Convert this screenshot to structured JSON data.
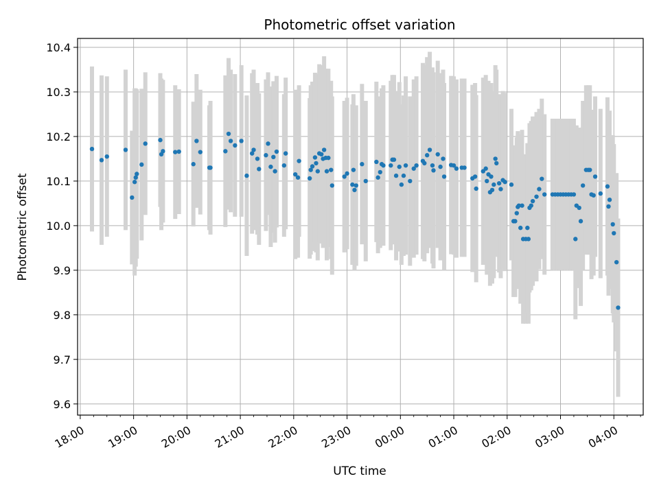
{
  "chart_data": {
    "type": "scatter",
    "title": "Photometric offset variation",
    "xlabel": "UTC time",
    "ylabel": "Photometric offset",
    "x_tick_labels": [
      "18:00",
      "19:00",
      "20:00",
      "21:00",
      "22:00",
      "23:00",
      "00:00",
      "01:00",
      "02:00",
      "03:00",
      "04:00"
    ],
    "x_range_hours": [
      17.95,
      28.55
    ],
    "y_ticks": [
      "9.6",
      "9.7",
      "9.8",
      "9.9",
      "10.0",
      "10.1",
      "10.2",
      "10.3",
      "10.4"
    ],
    "ylim": [
      9.575,
      10.42
    ],
    "grid": true,
    "point_color": "#1f77b4",
    "errorbar_color": "#d3d3d3",
    "points": [
      [
        18.22,
        10.172,
        0.185
      ],
      [
        18.4,
        10.147,
        0.19
      ],
      [
        18.5,
        10.155,
        0.18
      ],
      [
        18.85,
        10.17,
        0.18
      ],
      [
        18.97,
        10.063,
        0.15
      ],
      [
        19.02,
        10.098,
        0.21
      ],
      [
        19.04,
        10.108,
        0.2
      ],
      [
        19.06,
        10.116,
        0.19
      ],
      [
        19.15,
        10.137,
        0.17
      ],
      [
        19.22,
        10.184,
        0.16
      ],
      [
        19.5,
        10.192,
        0.15
      ],
      [
        19.55,
        10.167,
        0.16
      ],
      [
        19.52,
        10.16,
        0.17
      ],
      [
        19.78,
        10.165,
        0.15
      ],
      [
        19.85,
        10.166,
        0.14
      ],
      [
        20.12,
        10.138,
        0.14
      ],
      [
        20.18,
        10.19,
        0.15
      ],
      [
        20.25,
        10.165,
        0.14
      ],
      [
        20.42,
        10.13,
        0.14
      ],
      [
        20.44,
        10.13,
        0.15
      ],
      [
        20.72,
        10.167,
        0.17
      ],
      [
        20.78,
        10.206,
        0.17
      ],
      [
        20.82,
        10.19,
        0.16
      ],
      [
        20.9,
        10.18,
        0.16
      ],
      [
        21.02,
        10.19,
        0.17
      ],
      [
        21.12,
        10.112,
        0.18
      ],
      [
        21.22,
        10.162,
        0.18
      ],
      [
        21.25,
        10.17,
        0.18
      ],
      [
        21.32,
        10.15,
        0.17
      ],
      [
        21.35,
        10.127,
        0.17
      ],
      [
        21.48,
        10.158,
        0.17
      ],
      [
        21.52,
        10.184,
        0.16
      ],
      [
        21.57,
        10.132,
        0.18
      ],
      [
        21.62,
        10.154,
        0.17
      ],
      [
        21.65,
        10.122,
        0.16
      ],
      [
        21.68,
        10.166,
        0.17
      ],
      [
        21.82,
        10.135,
        0.16
      ],
      [
        21.85,
        10.162,
        0.17
      ],
      [
        22.03,
        10.115,
        0.19
      ],
      [
        22.08,
        10.108,
        0.18
      ],
      [
        22.1,
        10.145,
        0.17
      ],
      [
        22.3,
        10.106,
        0.18
      ],
      [
        22.32,
        10.125,
        0.19
      ],
      [
        22.35,
        10.133,
        0.19
      ],
      [
        22.4,
        10.153,
        0.19
      ],
      [
        22.42,
        10.14,
        0.2
      ],
      [
        22.45,
        10.122,
        0.2
      ],
      [
        22.48,
        10.162,
        0.2
      ],
      [
        22.52,
        10.16,
        0.2
      ],
      [
        22.55,
        10.15,
        0.2
      ],
      [
        22.57,
        10.17,
        0.21
      ],
      [
        22.6,
        10.152,
        0.2
      ],
      [
        22.62,
        10.122,
        0.2
      ],
      [
        22.65,
        10.152,
        0.2
      ],
      [
        22.7,
        10.125,
        0.2
      ],
      [
        22.72,
        10.09,
        0.2
      ],
      [
        22.95,
        10.11,
        0.17
      ],
      [
        23.0,
        10.117,
        0.17
      ],
      [
        23.1,
        10.092,
        0.18
      ],
      [
        23.12,
        10.125,
        0.17
      ],
      [
        23.14,
        10.08,
        0.18
      ],
      [
        23.17,
        10.09,
        0.18
      ],
      [
        23.28,
        10.138,
        0.18
      ],
      [
        23.35,
        10.1,
        0.18
      ],
      [
        23.55,
        10.143,
        0.18
      ],
      [
        23.58,
        10.108,
        0.17
      ],
      [
        23.62,
        10.12,
        0.17
      ],
      [
        23.65,
        10.138,
        0.17
      ],
      [
        23.68,
        10.135,
        0.18
      ],
      [
        23.82,
        10.135,
        0.19
      ],
      [
        23.85,
        10.148,
        0.19
      ],
      [
        23.88,
        10.148,
        0.19
      ],
      [
        23.92,
        10.112,
        0.19
      ],
      [
        23.98,
        10.132,
        0.19
      ],
      [
        24.02,
        10.092,
        0.18
      ],
      [
        24.06,
        10.112,
        0.18
      ],
      [
        24.1,
        10.135,
        0.2
      ],
      [
        24.18,
        10.1,
        0.19
      ],
      [
        24.25,
        10.128,
        0.2
      ],
      [
        24.3,
        10.135,
        0.2
      ],
      [
        24.42,
        10.145,
        0.22
      ],
      [
        24.45,
        10.14,
        0.22
      ],
      [
        24.5,
        10.158,
        0.22
      ],
      [
        24.55,
        10.17,
        0.22
      ],
      [
        24.6,
        10.135,
        0.22
      ],
      [
        24.62,
        10.124,
        0.22
      ],
      [
        24.7,
        10.16,
        0.21
      ],
      [
        24.75,
        10.132,
        0.21
      ],
      [
        24.82,
        10.11,
        0.21
      ],
      [
        24.8,
        10.15,
        0.2
      ],
      [
        24.95,
        10.136,
        0.2
      ],
      [
        25.0,
        10.135,
        0.2
      ],
      [
        25.05,
        10.128,
        0.2
      ],
      [
        25.15,
        10.13,
        0.2
      ],
      [
        25.2,
        10.13,
        0.2
      ],
      [
        25.35,
        10.106,
        0.21
      ],
      [
        25.4,
        10.11,
        0.21
      ],
      [
        25.42,
        10.083,
        0.21
      ],
      [
        25.55,
        10.122,
        0.21
      ],
      [
        25.6,
        10.128,
        0.21
      ],
      [
        25.62,
        10.1,
        0.21
      ],
      [
        25.65,
        10.115,
        0.21
      ],
      [
        25.68,
        10.075,
        0.21
      ],
      [
        25.7,
        10.11,
        0.21
      ],
      [
        25.72,
        10.08,
        0.21
      ],
      [
        25.75,
        10.092,
        0.21
      ],
      [
        25.78,
        10.15,
        0.21
      ],
      [
        25.8,
        10.14,
        0.21
      ],
      [
        25.85,
        10.095,
        0.2
      ],
      [
        25.88,
        10.082,
        0.2
      ],
      [
        25.92,
        10.102,
        0.2
      ],
      [
        25.96,
        10.098,
        0.2
      ],
      [
        26.08,
        10.092,
        0.17
      ],
      [
        26.12,
        10.01,
        0.17
      ],
      [
        26.15,
        10.01,
        0.17
      ],
      [
        26.18,
        10.028,
        0.17
      ],
      [
        26.2,
        10.042,
        0.17
      ],
      [
        26.22,
        10.045,
        0.16
      ],
      [
        26.25,
        9.995,
        0.17
      ],
      [
        26.28,
        10.045,
        0.17
      ],
      [
        26.3,
        9.97,
        0.19
      ],
      [
        26.35,
        9.97,
        0.19
      ],
      [
        26.4,
        9.97,
        0.19
      ],
      [
        26.38,
        9.995,
        0.19
      ],
      [
        26.42,
        10.04,
        0.19
      ],
      [
        26.45,
        10.045,
        0.19
      ],
      [
        26.48,
        10.055,
        0.19
      ],
      [
        26.55,
        10.065,
        0.19
      ],
      [
        26.6,
        10.082,
        0.18
      ],
      [
        26.65,
        10.105,
        0.18
      ],
      [
        26.7,
        10.07,
        0.18
      ],
      [
        26.85,
        10.07,
        0.17
      ],
      [
        26.9,
        10.07,
        0.17
      ],
      [
        26.95,
        10.07,
        0.17
      ],
      [
        27.0,
        10.07,
        0.17
      ],
      [
        27.05,
        10.07,
        0.17
      ],
      [
        27.1,
        10.07,
        0.17
      ],
      [
        27.15,
        10.07,
        0.17
      ],
      [
        27.2,
        10.07,
        0.17
      ],
      [
        27.25,
        10.07,
        0.17
      ],
      [
        27.28,
        9.97,
        0.18
      ],
      [
        27.3,
        10.045,
        0.18
      ],
      [
        27.35,
        10.04,
        0.18
      ],
      [
        27.38,
        10.01,
        0.19
      ],
      [
        27.42,
        10.09,
        0.19
      ],
      [
        27.48,
        10.125,
        0.19
      ],
      [
        27.52,
        10.125,
        0.19
      ],
      [
        27.55,
        10.125,
        0.19
      ],
      [
        27.58,
        10.07,
        0.19
      ],
      [
        27.62,
        10.068,
        0.18
      ],
      [
        27.65,
        10.11,
        0.18
      ],
      [
        27.75,
        10.072,
        0.19
      ],
      [
        27.88,
        10.088,
        0.2
      ],
      [
        27.9,
        10.043,
        0.2
      ],
      [
        27.92,
        10.058,
        0.2
      ],
      [
        27.98,
        10.003,
        0.2
      ],
      [
        28.0,
        9.983,
        0.2
      ],
      [
        28.05,
        9.918,
        0.2
      ],
      [
        28.08,
        9.816,
        0.2
      ]
    ]
  }
}
